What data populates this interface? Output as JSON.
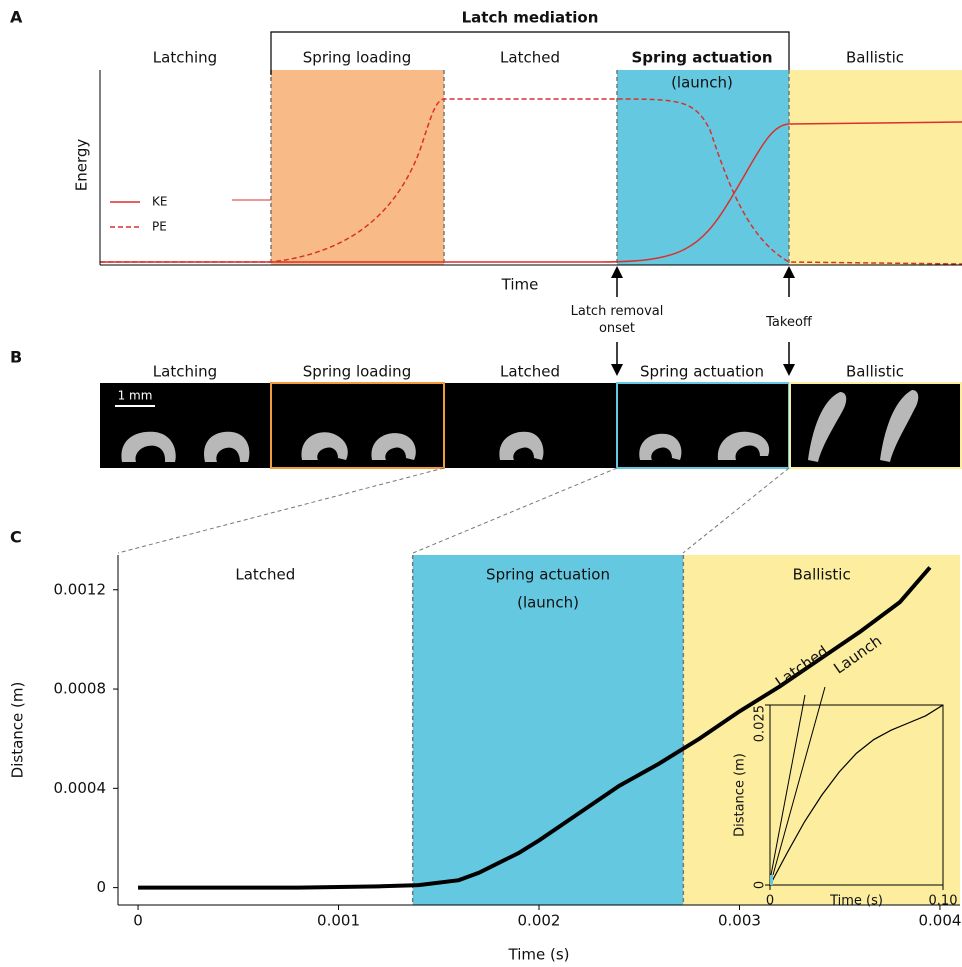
{
  "panel_labels": [
    "A",
    "B",
    "C"
  ],
  "panel_a": {
    "bracket_title": "Latch mediation",
    "phases": [
      "Latching",
      "Spring loading",
      "Latched",
      "Spring actuation",
      "Ballistic"
    ],
    "launch_note": "(launch)",
    "y_label": "Energy",
    "x_label": "Time",
    "legend": [
      "KE",
      "PE"
    ],
    "annotations": [
      "Latch removal onset",
      "Takeoff"
    ]
  },
  "panel_b": {
    "phases": [
      "Latching",
      "Spring loading",
      "Latched",
      "Spring actuation",
      "Ballistic"
    ],
    "scale_bar": "1 mm"
  },
  "chart_data": [
    {
      "type": "line",
      "phases": [
        "Latched",
        "Spring actuation",
        "Ballistic"
      ],
      "launch_note": "(launch)",
      "phase_bounds": [
        0.00137,
        0.00272
      ],
      "phase_colors": [
        "#64c9e0",
        "#fcee9e"
      ],
      "x_label": "Time (s)",
      "y_label": "Distance (m)",
      "x": [
        0,
        0.0004,
        0.0008,
        0.0012,
        0.0014,
        0.0016,
        0.0017,
        0.0018,
        0.0019,
        0.002,
        0.0022,
        0.0024,
        0.0026,
        0.0028,
        0.003,
        0.0032,
        0.0034,
        0.0036,
        0.0038,
        0.00395
      ],
      "series": [
        {
          "color": "#000000",
          "values": [
            0,
            0,
            0,
            5e-06,
            1e-05,
            3e-05,
            6e-05,
            0.0001,
            0.00014,
            0.00019,
            0.0003,
            0.00041,
            0.0005,
            0.0006,
            0.00071,
            0.00081,
            0.00092,
            0.00103,
            0.00115,
            0.00129
          ]
        }
      ],
      "xlim": [
        -0.0001,
        0.0041
      ],
      "ylim": [
        -7e-05,
        0.00134
      ],
      "xticks": [
        0,
        0.001,
        0.002,
        0.003,
        0.004
      ],
      "yticks": [
        0,
        0.0004,
        0.0008,
        0.0012
      ]
    },
    {
      "type": "line",
      "x_label": "Time (s)",
      "y_label": "Distance (m)",
      "annotations": [
        "Latched",
        "Launch"
      ],
      "x": [
        0,
        0.01,
        0.02,
        0.03,
        0.04,
        0.05,
        0.06,
        0.07,
        0.08,
        0.09,
        0.1
      ],
      "series": [
        {
          "color": "#000000",
          "values": [
            0,
            0.0045,
            0.0088,
            0.0125,
            0.0157,
            0.0183,
            0.0202,
            0.0215,
            0.0225,
            0.0235,
            0.025
          ]
        }
      ],
      "xlim": [
        0,
        0.1
      ],
      "ylim": [
        0,
        0.025
      ],
      "xticks": [
        0,
        {
          "value": 0.1,
          "label": "0.10"
        }
      ],
      "yticks": [
        0,
        0.025
      ]
    }
  ]
}
